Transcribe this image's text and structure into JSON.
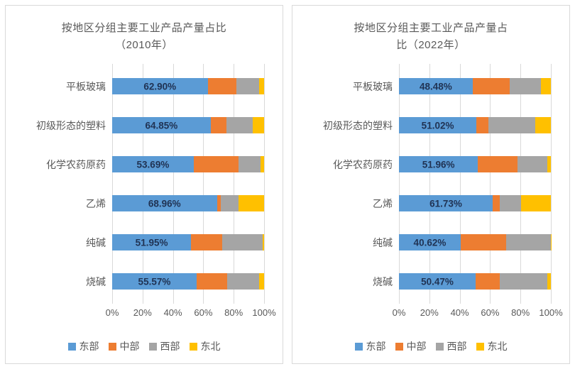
{
  "page": {
    "background": "#ffffff",
    "card_border_color": "#d9d9d9"
  },
  "colors": {
    "east": "#5B9BD5",
    "central": "#ED7D31",
    "west": "#A5A5A5",
    "northeast": "#FFC000",
    "gridline": "#d9d9d9",
    "axis_text": "#595959",
    "data_label_text": "#203354"
  },
  "chart_data": [
    {
      "type": "bar",
      "orientation": "horizontal-stacked",
      "title": "按地区分组主要工业产品产量占比（2010年）",
      "title_line1": "按地区分组主要工业产品产量占比",
      "title_line2": "（2010年）",
      "categories": [
        "平板玻璃",
        "初级形态的塑料",
        "化学农药原药",
        "乙烯",
        "纯碱",
        "烧碱"
      ],
      "series": [
        {
          "name": "东部",
          "color": "#5B9BD5",
          "values": [
            62.9,
            64.85,
            53.69,
            68.96,
            51.95,
            55.57
          ]
        },
        {
          "name": "中部",
          "color": "#ED7D31",
          "values": [
            19.1,
            10.6,
            29.4,
            2.4,
            20.6,
            20.3
          ]
        },
        {
          "name": "西部",
          "color": "#A5A5A5",
          "values": [
            14.7,
            17.0,
            14.5,
            11.6,
            26.6,
            20.9
          ]
        },
        {
          "name": "东北",
          "color": "#FFC000",
          "values": [
            3.3,
            7.55,
            2.41,
            17.04,
            0.85,
            3.23
          ]
        }
      ],
      "data_labels": {
        "series": "东部",
        "values": [
          "62.90%",
          "64.85%",
          "53.69%",
          "68.96%",
          "51.95%",
          "55.57%"
        ]
      },
      "x_ticks": [
        "0%",
        "20%",
        "40%",
        "60%",
        "80%",
        "100%"
      ],
      "xlim": [
        0,
        100
      ],
      "grid": true,
      "legend_position": "bottom"
    },
    {
      "type": "bar",
      "orientation": "horizontal-stacked",
      "title": "按地区分组主要工业产品产量占比（2022年）",
      "title_line1": "按地区分组主要工业产品产量占",
      "title_line2": "比（2022年）",
      "categories": [
        "平板玻璃",
        "初级形态的塑料",
        "化学农药原药",
        "乙烯",
        "纯碱",
        "烧碱"
      ],
      "series": [
        {
          "name": "东部",
          "color": "#5B9BD5",
          "values": [
            48.48,
            51.02,
            51.96,
            61.73,
            40.62,
            50.47
          ]
        },
        {
          "name": "中部",
          "color": "#ED7D31",
          "values": [
            24.5,
            8.0,
            26.2,
            4.6,
            30.0,
            15.9
          ]
        },
        {
          "name": "西部",
          "color": "#A5A5A5",
          "values": [
            20.3,
            30.9,
            19.3,
            13.9,
            29.18,
            31.1
          ]
        },
        {
          "name": "东北",
          "color": "#FFC000",
          "values": [
            6.72,
            10.08,
            2.54,
            19.77,
            0.2,
            2.53
          ]
        }
      ],
      "data_labels": {
        "series": "东部",
        "values": [
          "48.48%",
          "51.02%",
          "51.96%",
          "61.73%",
          "40.62%",
          "50.47%"
        ]
      },
      "x_ticks": [
        "0%",
        "20%",
        "40%",
        "60%",
        "80%",
        "100%"
      ],
      "xlim": [
        0,
        100
      ],
      "grid": true,
      "legend_position": "bottom"
    }
  ]
}
